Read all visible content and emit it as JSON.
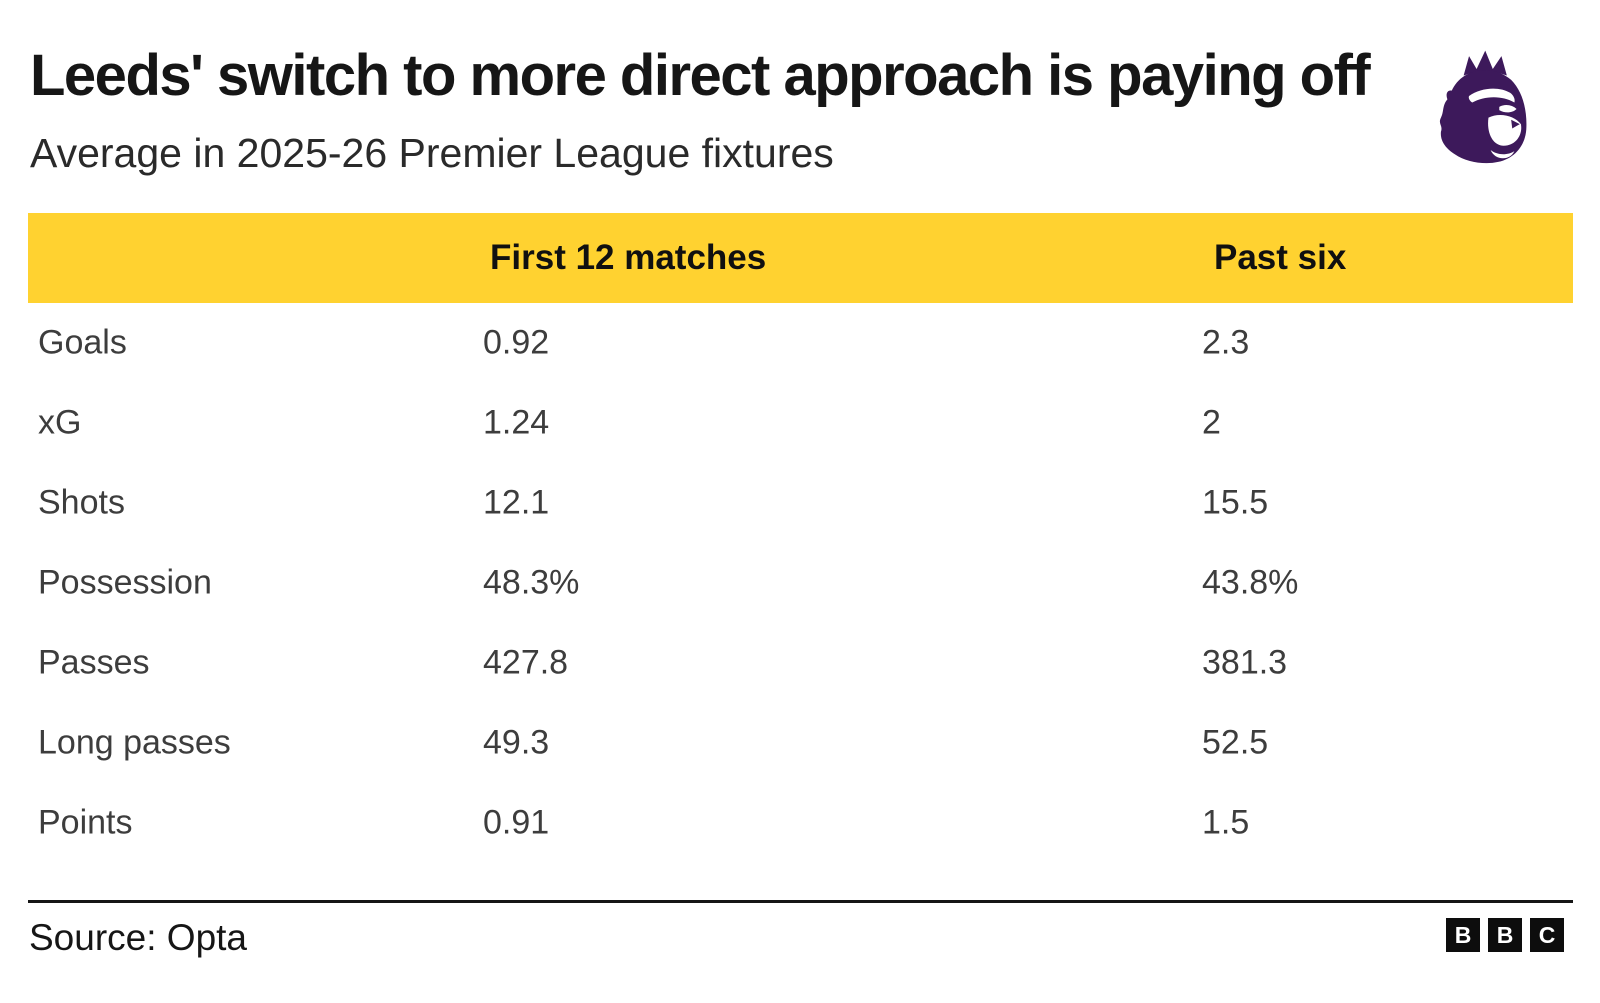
{
  "header": {
    "title": "Leeds' switch to more direct approach is paying off",
    "subtitle": "Average in 2025-26 Premier League fixtures",
    "logo": "premier-league-lion-icon"
  },
  "table": {
    "col1_header": "First 12 matches",
    "col2_header": "Past six",
    "rows": [
      {
        "label": "Goals",
        "first_12_matches": "0.92",
        "past_six": "2.3"
      },
      {
        "label": "xG",
        "first_12_matches": "1.24",
        "past_six": "2"
      },
      {
        "label": "Shots",
        "first_12_matches": "12.1",
        "past_six": "15.5"
      },
      {
        "label": "Possession",
        "first_12_matches": "48.3%",
        "past_six": "43.8%"
      },
      {
        "label": "Passes",
        "first_12_matches": "427.8",
        "past_six": "381.3"
      },
      {
        "label": "Long passes",
        "first_12_matches": "49.3",
        "past_six": "52.5"
      },
      {
        "label": "Points",
        "first_12_matches": "0.91",
        "past_six": "1.5"
      }
    ]
  },
  "footer": {
    "source": "Source: Opta",
    "bbc_letters": [
      "B",
      "B",
      "C"
    ]
  },
  "colors": {
    "header_band": "#FFD230",
    "premier_league_purple": "#3D195B",
    "title_text": "#161616",
    "row_text": "#3d3d3d",
    "bbc_black": "#0d0d0d"
  },
  "chart_data": {
    "type": "table",
    "title": "Leeds' switch to more direct approach is paying off",
    "subtitle": "Average in 2025-26 Premier League fixtures",
    "categories": [
      "Goals",
      "xG",
      "Shots",
      "Possession",
      "Passes",
      "Long passes",
      "Points"
    ],
    "series": [
      {
        "name": "First 12 matches",
        "values": [
          0.92,
          1.24,
          12.1,
          48.3,
          427.8,
          49.3,
          0.91
        ]
      },
      {
        "name": "Past six",
        "values": [
          2.3,
          2,
          15.5,
          43.8,
          381.3,
          52.5,
          1.5
        ]
      }
    ],
    "value_units": {
      "Possession": "%"
    },
    "source": "Source: Opta",
    "layout": {
      "header_background": "#FFD230",
      "grid": false,
      "legend_position": "column-headers"
    }
  }
}
